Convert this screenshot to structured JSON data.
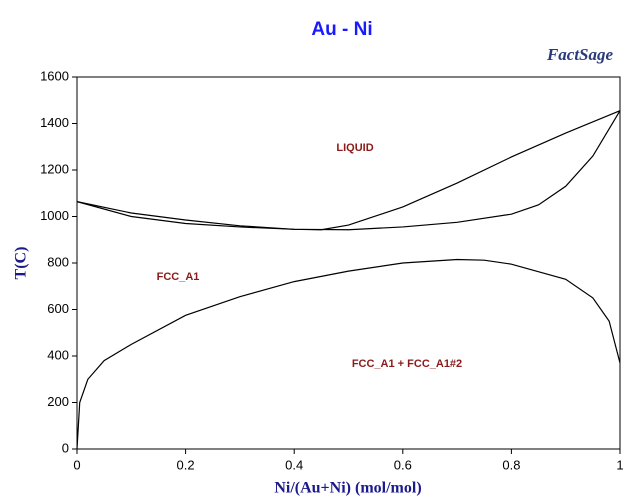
{
  "chart_data": {
    "type": "line",
    "title": "Au - Ni",
    "logo": "FactSage",
    "x_label": "Ni/(Au+Ni) (mol/mol)",
    "y_label": "T(C)",
    "annotations": [
      "LIQUID",
      "FCC_A1",
      "FCC_A1 + FCC_A1#2"
    ],
    "xlim": [
      0,
      1
    ],
    "xticks": [
      0,
      0.2,
      0.4,
      0.6,
      0.8,
      1
    ],
    "ylim": [
      0,
      1600
    ],
    "yticks": [
      0,
      200,
      400,
      600,
      800,
      1000,
      1200,
      1400,
      1600
    ],
    "series": [
      {
        "color": "#000000",
        "x": [
          0,
          0.1,
          0.2,
          0.3,
          0.4,
          0.45,
          0.5,
          0.6,
          0.7,
          0.8,
          0.9,
          1
        ],
        "values": [
          1064,
          1015,
          985,
          960,
          945,
          943,
          963,
          1041,
          1144,
          1256,
          1359,
          1455
        ]
      },
      {
        "color": "#000000",
        "x": [
          0,
          0.1,
          0.2,
          0.3,
          0.4,
          0.5,
          0.6,
          0.7,
          0.8,
          0.85,
          0.9,
          0.95,
          1
        ],
        "values": [
          1064,
          1000,
          970,
          955,
          945,
          943,
          955,
          975,
          1010,
          1050,
          1130,
          1260,
          1455
        ]
      },
      {
        "color": "#000000",
        "x": [
          0,
          0.005,
          0.02,
          0.05,
          0.1,
          0.2,
          0.3,
          0.4,
          0.5,
          0.6,
          0.7,
          0.75,
          0.8,
          0.9,
          0.95,
          0.98,
          1
        ],
        "values": [
          0,
          200,
          300,
          380,
          450,
          575,
          655,
          720,
          765,
          800,
          815,
          812,
          795,
          730,
          650,
          550,
          370
        ]
      }
    ]
  }
}
